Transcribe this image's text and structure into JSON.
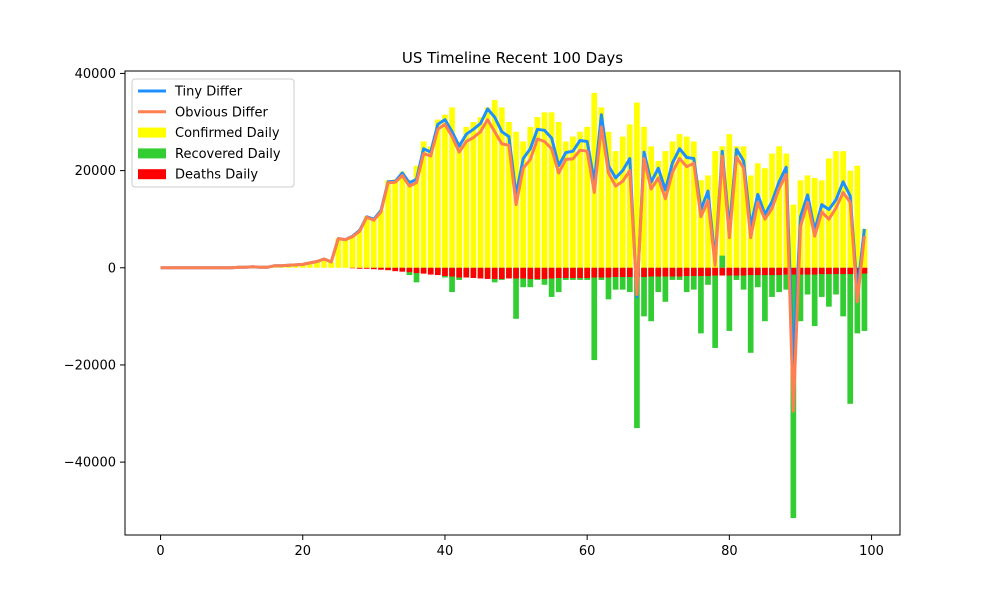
{
  "chart_data": {
    "type": "bar",
    "title": "US Timeline Recent 100 Days",
    "xlabel": "",
    "ylabel": "",
    "xlim": [
      -5,
      104
    ],
    "ylim": [
      -55000,
      40500
    ],
    "x_ticks": [
      0,
      20,
      40,
      60,
      80,
      100
    ],
    "y_ticks": [
      -40000,
      -20000,
      0,
      20000,
      40000
    ],
    "x_tick_labels": [
      "0",
      "20",
      "40",
      "60",
      "80",
      "100"
    ],
    "y_tick_labels": [
      "−40000",
      "−20000",
      "0",
      "20000",
      "40000"
    ],
    "legend_position": "upper-left",
    "legend": [
      {
        "label": "Tiny Differ",
        "kind": "line",
        "color": "#1e90ff"
      },
      {
        "label": "Obvious Differ",
        "kind": "line",
        "color": "#ff7f50"
      },
      {
        "label": "Confirmed Daily",
        "kind": "bar",
        "color": "#ffff00"
      },
      {
        "label": "Recovered Daily",
        "kind": "bar",
        "color": "#32cd32"
      },
      {
        "label": "Deaths Daily",
        "kind": "bar",
        "color": "#ff0000"
      }
    ],
    "x": [
      0,
      1,
      2,
      3,
      4,
      5,
      6,
      7,
      8,
      9,
      10,
      11,
      12,
      13,
      14,
      15,
      16,
      17,
      18,
      19,
      20,
      21,
      22,
      23,
      24,
      25,
      26,
      27,
      28,
      29,
      30,
      31,
      32,
      33,
      34,
      35,
      36,
      37,
      38,
      39,
      40,
      41,
      42,
      43,
      44,
      45,
      46,
      47,
      48,
      49,
      50,
      51,
      52,
      53,
      54,
      55,
      56,
      57,
      58,
      59,
      60,
      61,
      62,
      63,
      64,
      65,
      66,
      67,
      68,
      69,
      70,
      71,
      72,
      73,
      74,
      75,
      76,
      77,
      78,
      79,
      80,
      81,
      82,
      83,
      84,
      85,
      86,
      87,
      88,
      89,
      90,
      91,
      92,
      93,
      94,
      95,
      96,
      97,
      98,
      99
    ],
    "series": [
      {
        "name": "Confirmed Daily",
        "type": "bar",
        "color": "#ffff00",
        "values": [
          0,
          0,
          0,
          0,
          0,
          0,
          0,
          0,
          0,
          0,
          0,
          100,
          100,
          200,
          200,
          200,
          400,
          400,
          500,
          600,
          800,
          1000,
          1400,
          1800,
          1200,
          6000,
          5800,
          6600,
          7800,
          10600,
          10200,
          11800,
          18000,
          18200,
          19800,
          18100,
          21000,
          26000,
          25000,
          30500,
          31500,
          33000,
          26000,
          29000,
          30000,
          31000,
          33000,
          34500,
          33000,
          30000,
          28000,
          26000,
          29000,
          31000,
          32000,
          32000,
          30000,
          26000,
          27000,
          28000,
          29000,
          36000,
          33000,
          28000,
          24000,
          27000,
          29500,
          34000,
          29000,
          25000,
          22000,
          24000,
          26000,
          27500,
          27000,
          26000,
          18000,
          19000,
          24000,
          25000,
          27500,
          25000,
          25000,
          19000,
          21500,
          20500,
          23500,
          25000,
          23500,
          13000,
          18000,
          19000,
          18500,
          18000,
          22500,
          24000,
          24000,
          20000,
          21000,
          8000
        ]
      },
      {
        "name": "Recovered Daily",
        "type": "bar",
        "color": "#32cd32",
        "values": [
          0,
          0,
          0,
          0,
          0,
          0,
          0,
          0,
          0,
          0,
          0,
          0,
          0,
          0,
          0,
          0,
          0,
          0,
          0,
          0,
          0,
          0,
          0,
          0,
          0,
          0,
          0,
          0,
          0,
          0,
          -100,
          -100,
          -200,
          -300,
          -500,
          -1500,
          -3000,
          -800,
          -1000,
          -1000,
          -2000,
          -5000,
          -2500,
          -2000,
          -1500,
          -2000,
          -2000,
          -3000,
          -2500,
          -2000,
          -10500,
          -4000,
          -4000,
          -2500,
          -3500,
          -6000,
          -5000,
          -2500,
          -2500,
          -2500,
          -2500,
          -19000,
          -2500,
          -6500,
          -4500,
          -4500,
          -5000,
          -33000,
          -10000,
          -11000,
          -5000,
          -7000,
          -2500,
          -2500,
          -5000,
          -4500,
          -13500,
          -3500,
          -16500,
          2500,
          -13000,
          -2500,
          -4500,
          -17500,
          -4000,
          -11000,
          -6000,
          -5000,
          -4500,
          -51500,
          -11000,
          -5500,
          -12000,
          -6000,
          -8000,
          -5500,
          -10000,
          -28000,
          -13500,
          -13000
        ]
      },
      {
        "name": "Deaths Daily",
        "type": "bar",
        "color": "#ff0000",
        "values": [
          0,
          0,
          0,
          0,
          0,
          0,
          0,
          0,
          0,
          0,
          0,
          0,
          0,
          0,
          0,
          0,
          0,
          0,
          0,
          0,
          0,
          0,
          0,
          0,
          0,
          0,
          0,
          -100,
          -200,
          -200,
          -300,
          -400,
          -500,
          -700,
          -800,
          -900,
          -1100,
          -1200,
          -1400,
          -1500,
          -1700,
          -1800,
          -2000,
          -2000,
          -2100,
          -2200,
          -2300,
          -2300,
          -2300,
          -2200,
          -2200,
          -2200,
          -2300,
          -2300,
          -2300,
          -2200,
          -2100,
          -2100,
          -2100,
          -2100,
          -2100,
          -2000,
          -2000,
          -2000,
          -1900,
          -1900,
          -1900,
          -1900,
          -1900,
          -1800,
          -1800,
          -1800,
          -1800,
          -1800,
          -1700,
          -1700,
          -1700,
          -1700,
          -1600,
          -1600,
          -1600,
          -1600,
          -1600,
          -1500,
          -1500,
          -1500,
          -1500,
          -1500,
          -1400,
          -1400,
          -1400,
          -1400,
          -1400,
          -1300,
          -1300,
          -1300,
          -1300,
          -1300,
          -1300,
          -1200
        ]
      },
      {
        "name": "Tiny Differ",
        "type": "line",
        "color": "#1e90ff",
        "values": [
          0,
          0,
          0,
          0,
          0,
          0,
          0,
          0,
          0,
          0,
          0,
          100,
          100,
          200,
          100,
          100,
          400,
          400,
          500,
          600,
          700,
          1000,
          1300,
          1800,
          1200,
          6000,
          5800,
          6500,
          7700,
          10500,
          10000,
          11800,
          17700,
          17800,
          19500,
          17500,
          18200,
          24500,
          23800,
          29500,
          30500,
          28000,
          25000,
          27500,
          28500,
          29700,
          32700,
          31000,
          28000,
          27000,
          15000,
          22500,
          24500,
          28500,
          28300,
          26700,
          21000,
          23700,
          24000,
          26200,
          26000,
          17700,
          31500,
          21000,
          18500,
          20000,
          22500,
          -6000,
          23800,
          17600,
          20500,
          16000,
          21600,
          24500,
          22700,
          22500,
          12000,
          15800,
          1500,
          24000,
          8000,
          24400,
          22000,
          8500,
          15100,
          11000,
          13600,
          17700,
          20700,
          -20000,
          10500,
          15000,
          7700,
          13000,
          12000,
          14000,
          17700,
          14800,
          -5000,
          8000
        ]
      },
      {
        "name": "Obvious Differ",
        "type": "line",
        "color": "#ff7f50",
        "values": [
          0,
          0,
          0,
          0,
          0,
          0,
          0,
          0,
          0,
          0,
          0,
          100,
          100,
          200,
          100,
          100,
          400,
          400,
          500,
          600,
          700,
          1000,
          1300,
          1800,
          1200,
          6000,
          5800,
          6400,
          7500,
          10400,
          9800,
          11500,
          17500,
          17600,
          19000,
          16800,
          17500,
          23500,
          23000,
          28500,
          29500,
          27000,
          23800,
          26000,
          26800,
          28000,
          30500,
          28000,
          25500,
          25200,
          13000,
          20500,
          22300,
          26500,
          26000,
          24500,
          19500,
          22300,
          22400,
          24200,
          24000,
          15500,
          29000,
          19500,
          16800,
          17800,
          20000,
          -5500,
          22500,
          16200,
          18500,
          14200,
          19700,
          22500,
          20800,
          21500,
          10500,
          13800,
          500,
          23000,
          6200,
          22800,
          20500,
          6200,
          13500,
          10000,
          12200,
          16300,
          19200,
          -29500,
          8500,
          13500,
          6500,
          11500,
          10000,
          12300,
          15500,
          13500,
          -7000,
          6500
        ]
      }
    ]
  }
}
